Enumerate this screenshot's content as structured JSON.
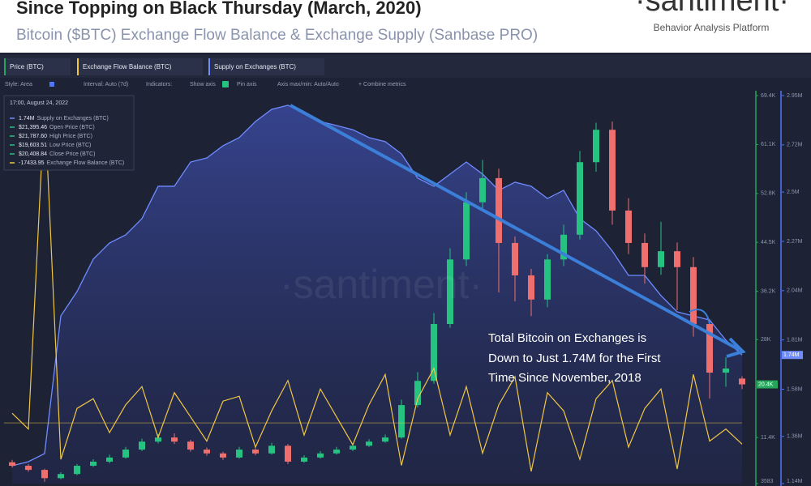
{
  "header": {
    "title": "Since Topping on Black Thursday (March, 2020)",
    "subtitle": "Bitcoin ($BTC) Exchange Flow Balance & Exchange Supply (Sanbase PRO)",
    "logo": "·santiment·",
    "tagline": "Behavior Analysis Platform"
  },
  "toolbar": [
    "Style: Area",
    "Interval: Auto (7d)",
    "Indicators:",
    "Show axis",
    "Pin axis",
    "Axis max/min: Auto/Auto",
    "+ Combine metrics"
  ],
  "tooltip": {
    "time": "17:00, August 24, 2022",
    "rows": [
      {
        "value": "1.74M",
        "label": "Supply on Exchanges (BTC)",
        "color": "#6f8cff"
      },
      {
        "value": "$21,395.46",
        "label": "Open Price (BTC)",
        "color": "#26c281"
      },
      {
        "value": "$21,787.60",
        "label": "High Price (BTC)",
        "color": "#26c281"
      },
      {
        "value": "$19,603.51",
        "label": "Low Price (BTC)",
        "color": "#26c281"
      },
      {
        "value": "$20,408.84",
        "label": "Close Price (BTC)",
        "color": "#26c281"
      },
      {
        "value": "-17433.95",
        "label": "Exchange Flow Balance (BTC)",
        "color": "#f2c744"
      }
    ]
  },
  "chart_data": {
    "type": "candlestick",
    "watermark": "·santiment·",
    "annotation": [
      "Total Bitcoin on Exchanges is",
      "Down to Just 1.74M for the First",
      "Time Since November, 2018"
    ],
    "ylim": [
      3583,
      69400
    ],
    "yticks": [
      {
        "value": 69400,
        "label": "69.4K"
      },
      {
        "value": 61100,
        "label": "61.1K"
      },
      {
        "value": 52800,
        "label": "52.8K"
      },
      {
        "value": 44500,
        "label": "44.5K"
      },
      {
        "value": 36200,
        "label": "36.2K"
      },
      {
        "value": 28000,
        "label": "28K"
      },
      {
        "value": 11400,
        "label": "11.4K"
      },
      3583
    ],
    "y2lim": [
      1140000,
      2950000
    ],
    "y2ticks": [
      {
        "value": 2950000,
        "label": "2.95M"
      },
      {
        "value": 2720000,
        "label": "2.72M"
      },
      {
        "value": 2500000,
        "label": "2.5M"
      },
      {
        "value": 2270000,
        "label": "2.27M"
      },
      {
        "value": 2040000,
        "label": "2.04M"
      },
      {
        "value": 1810000,
        "label": "1.81M"
      },
      {
        "value": 1580000,
        "label": "1.58M"
      },
      {
        "value": 1360000,
        "label": "1.36M"
      },
      {
        "value": 1140000,
        "label": "1.14M"
      }
    ],
    "y3lim": [
      -50000,
      270000
    ],
    "series": [
      {
        "name": "Price (BTC)",
        "type": "candlestick",
        "axis": "y",
        "color": "#26a65b",
        "up_color": "#26c281",
        "down_color": "#ef6e6e",
        "last_label": "20.4K",
        "open": [
          7200,
          6600,
          5900,
          4500,
          5200,
          6600,
          7300,
          8000,
          9350,
          10700,
          11400,
          10700,
          9350,
          8700,
          8000,
          9350,
          8700,
          10000,
          7300,
          8000,
          8700,
          9350,
          10000,
          10700,
          11400,
          16900,
          21000,
          30650,
          41600,
          51300,
          55400,
          44400,
          38900,
          34800,
          41600,
          45800,
          58100,
          63600,
          49900,
          44400,
          40300,
          43000,
          40300,
          30650,
          22400,
          21395.46
        ],
        "high": [
          7600,
          6900,
          6100,
          5500,
          6900,
          7700,
          8500,
          9800,
          11200,
          12000,
          12100,
          11000,
          9700,
          9000,
          9800,
          9600,
          10500,
          10300,
          8400,
          9100,
          9800,
          10400,
          11100,
          11900,
          17800,
          22500,
          32500,
          43500,
          53000,
          58500,
          57000,
          45500,
          40000,
          42500,
          47500,
          60000,
          64800,
          65000,
          52000,
          46000,
          48000,
          44500,
          42000,
          31500,
          25000,
          21787.6
        ],
        "low": [
          6300,
          5600,
          3900,
          4300,
          5000,
          6400,
          7000,
          7800,
          9100,
          10400,
          10300,
          9000,
          8300,
          7600,
          7800,
          8400,
          8500,
          6900,
          7100,
          7800,
          8500,
          9100,
          9800,
          10500,
          11200,
          16500,
          20500,
          30000,
          40500,
          50000,
          36000,
          34500,
          32000,
          33500,
          40500,
          45000,
          56500,
          47500,
          42500,
          37500,
          39000,
          33000,
          28500,
          18000,
          20000,
          19603.51
        ],
        "close": [
          6600,
          5900,
          4500,
          5200,
          6600,
          7300,
          8000,
          9350,
          10700,
          11400,
          10700,
          9350,
          8700,
          8000,
          9350,
          8700,
          10000,
          7300,
          8000,
          8700,
          9350,
          10000,
          10700,
          11400,
          16900,
          21000,
          30650,
          41600,
          51300,
          55400,
          44400,
          38900,
          34800,
          41600,
          45800,
          58100,
          63600,
          49900,
          44400,
          40300,
          43000,
          40300,
          30650,
          22400,
          23100,
          20408.84
        ]
      },
      {
        "name": "Exchange Flow Balance (BTC)",
        "type": "line",
        "axis": "y3",
        "color": "#f2c744",
        "values": [
          8000,
          -5000,
          265000,
          -30000,
          12000,
          20000,
          -8000,
          15000,
          30000,
          -12000,
          25000,
          5000,
          -15000,
          18000,
          22000,
          -20000,
          10000,
          35000,
          -10000,
          28000,
          5000,
          -18000,
          15000,
          40000,
          -35000,
          20000,
          45000,
          -10000,
          30000,
          -25000,
          15000,
          38000,
          -40000,
          25000,
          10000,
          -30000,
          20000,
          35000,
          -20000,
          12000,
          28000,
          -38000,
          40000,
          -15000,
          -5000,
          -17433.95
        ]
      },
      {
        "name": "Supply on Exchanges (BTC)",
        "type": "area",
        "axis": "y2",
        "color": "#6f8cff",
        "last_label": "1.74M",
        "values": [
          1223000,
          1242000,
          1280000,
          1922000,
          2036000,
          2187000,
          2262000,
          2300000,
          2376000,
          2527000,
          2527000,
          2640000,
          2659000,
          2716000,
          2754000,
          2829000,
          2886000,
          2905000,
          2867000,
          2829000,
          2810000,
          2791000,
          2754000,
          2735000,
          2678000,
          2565000,
          2527000,
          2584000,
          2640000,
          2584000,
          2508000,
          2546000,
          2527000,
          2470000,
          2508000,
          2376000,
          2319000,
          2225000,
          2111000,
          2111000,
          2017000,
          1941000,
          1922000,
          1903000,
          1809000,
          1740000
        ]
      }
    ]
  }
}
